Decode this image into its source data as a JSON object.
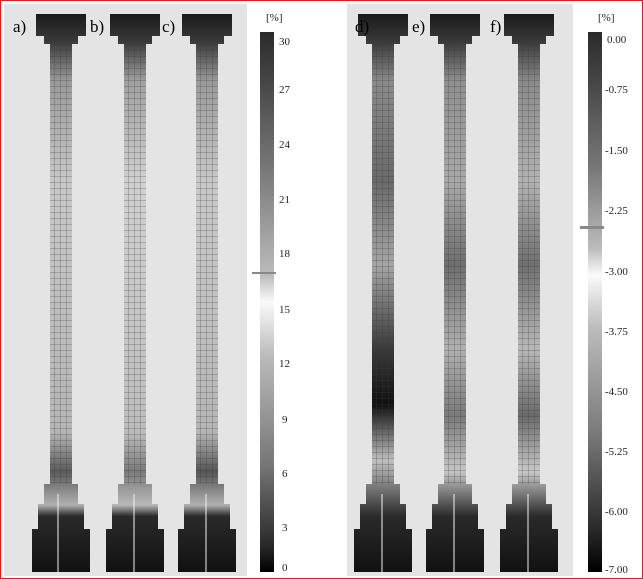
{
  "panel_labels": [
    "a)",
    "b)",
    "c)",
    "d)",
    "e)",
    "f)"
  ],
  "colorbar_left": {
    "unit": "[%]",
    "ticks": [
      "30",
      "27",
      "24",
      "21",
      "18",
      "15",
      "12",
      "9",
      "6",
      "3",
      "0"
    ]
  },
  "colorbar_right": {
    "unit": "[%]",
    "ticks": [
      "0.00",
      "-0.75",
      "-1.50",
      "-2.25",
      "-3.00",
      "-3.75",
      "-4.50",
      "-5.25",
      "-6.00",
      "-7.00"
    ]
  },
  "colors": {
    "frame_border": "#d42020",
    "panel_background": "#e4e4e4",
    "grid_line": "#3a3a3a"
  }
}
